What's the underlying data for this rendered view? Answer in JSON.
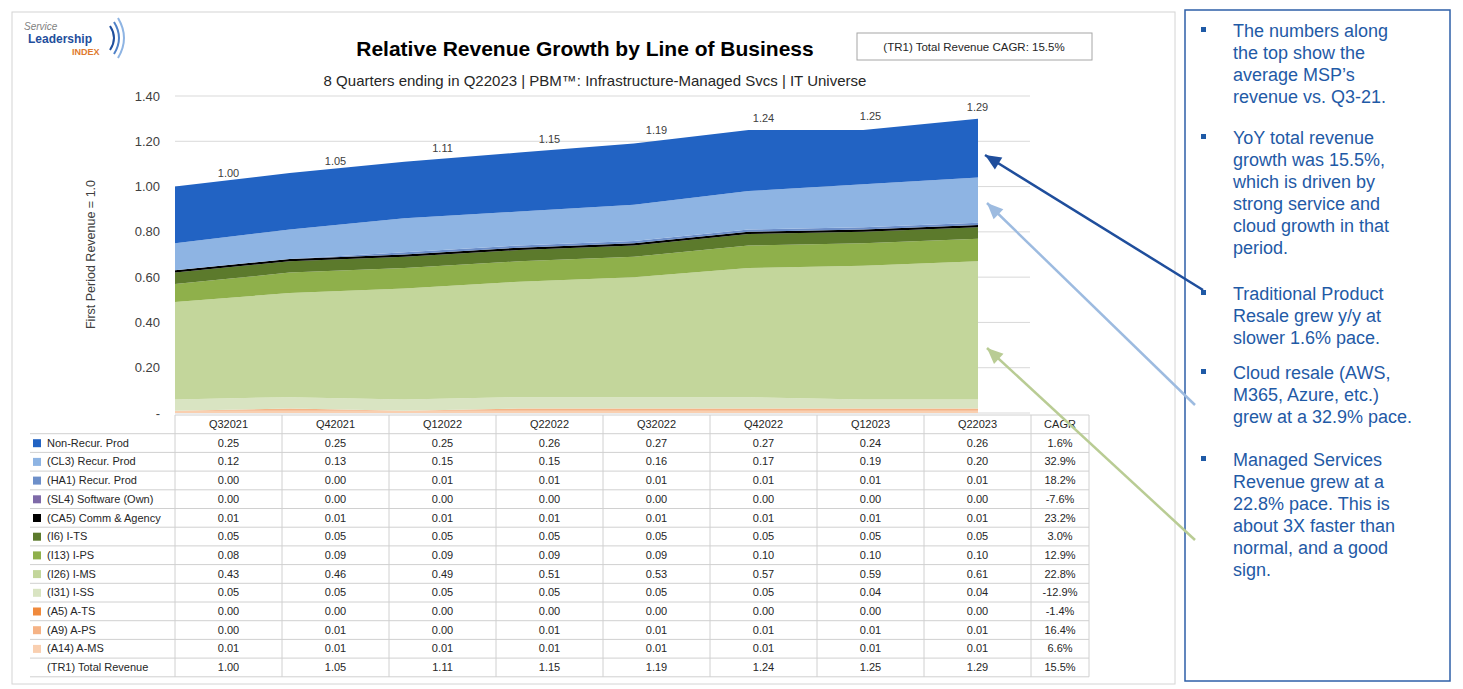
{
  "chart_data": {
    "type": "area",
    "title": "Relative Revenue Growth by Line of Business",
    "subtitle": "8 Quarters ending in Q22023 | PBM™: Infrastructure-Managed Svcs | IT Universe",
    "badge": "(TR1) Total Revenue CAGR: 15.5%",
    "logo": [
      "Service",
      "Leadership",
      "INDEX"
    ],
    "y_label": "First Period Revenue = 1.0",
    "cagr_label": "CAGR",
    "stacked": true,
    "grid": true,
    "data_labels": true,
    "ylim": [
      0,
      1.4
    ],
    "yticks": [
      {
        "value": 0,
        "label": "-"
      },
      {
        "value": 0.2,
        "label": "0.20"
      },
      {
        "value": 0.4,
        "label": "0.40"
      },
      {
        "value": 0.6,
        "label": "0.60"
      },
      {
        "value": 0.8,
        "label": "0.80"
      },
      {
        "value": 1,
        "label": "1.00"
      },
      {
        "value": 1.2,
        "label": "1.20"
      },
      {
        "value": 1.4,
        "label": "1.40"
      }
    ],
    "categories": [
      "Q32021",
      "Q42021",
      "Q12022",
      "Q22022",
      "Q32022",
      "Q42022",
      "Q12023",
      "Q22023"
    ],
    "series": [
      {
        "name": "Non-Recur. Prod",
        "color": "#2263c3",
        "values": [
          0.25,
          0.25,
          0.25,
          0.26,
          0.27,
          0.27,
          0.24,
          0.26
        ],
        "value_labels": [
          "0.25",
          "0.25",
          "0.25",
          "0.26",
          "0.27",
          "0.27",
          "0.24",
          "0.26"
        ],
        "cagr": "1.6%"
      },
      {
        "name": "(CL3) Recur. Prod",
        "color": "#8eb4e3",
        "values": [
          0.12,
          0.13,
          0.15,
          0.15,
          0.16,
          0.17,
          0.19,
          0.2
        ],
        "value_labels": [
          "0.12",
          "0.13",
          "0.15",
          "0.15",
          "0.16",
          "0.17",
          "0.19",
          "0.20"
        ],
        "cagr": "32.9%"
      },
      {
        "name": "(HA1) Recur. Prod",
        "color": "#6d8fc9",
        "values": [
          0,
          0,
          0.01,
          0.01,
          0.01,
          0.01,
          0.01,
          0.01
        ],
        "value_labels": [
          "0.00",
          "0.00",
          "0.01",
          "0.01",
          "0.01",
          "0.01",
          "0.01",
          "0.01"
        ],
        "cagr": "18.2%"
      },
      {
        "name": "(SL4) Software (Own)",
        "color": "#7e6aa8",
        "values": [
          0,
          0,
          0,
          0,
          0,
          0,
          0,
          0
        ],
        "value_labels": [
          "0.00",
          "0.00",
          "0.00",
          "0.00",
          "0.00",
          "0.00",
          "0.00",
          "0.00"
        ],
        "cagr": "-7.6%"
      },
      {
        "name": "(CA5) Comm & Agency",
        "color": "#000000",
        "values": [
          0.01,
          0.01,
          0.01,
          0.01,
          0.01,
          0.01,
          0.01,
          0.01
        ],
        "value_labels": [
          "0.01",
          "0.01",
          "0.01",
          "0.01",
          "0.01",
          "0.01",
          "0.01",
          "0.01"
        ],
        "cagr": "23.2%"
      },
      {
        "name": "(I6) I-TS",
        "color": "#5c7a2c",
        "values": [
          0.05,
          0.05,
          0.05,
          0.05,
          0.05,
          0.05,
          0.05,
          0.05
        ],
        "value_labels": [
          "0.05",
          "0.05",
          "0.05",
          "0.05",
          "0.05",
          "0.05",
          "0.05",
          "0.05"
        ],
        "cagr": "3.0%"
      },
      {
        "name": "(I13) I-PS",
        "color": "#8fb04b",
        "values": [
          0.08,
          0.09,
          0.09,
          0.09,
          0.09,
          0.1,
          0.1,
          0.1
        ],
        "value_labels": [
          "0.08",
          "0.09",
          "0.09",
          "0.09",
          "0.09",
          "0.10",
          "0.10",
          "0.10"
        ],
        "cagr": "12.9%"
      },
      {
        "name": "(I26) I-MS",
        "color": "#c3d69b",
        "values": [
          0.43,
          0.46,
          0.49,
          0.51,
          0.53,
          0.57,
          0.59,
          0.61
        ],
        "value_labels": [
          "0.43",
          "0.46",
          "0.49",
          "0.51",
          "0.53",
          "0.57",
          "0.59",
          "0.61"
        ],
        "cagr": "22.8%"
      },
      {
        "name": "(I31) I-SS",
        "color": "#d9e4c2",
        "values": [
          0.05,
          0.05,
          0.05,
          0.05,
          0.05,
          0.05,
          0.04,
          0.04
        ],
        "value_labels": [
          "0.05",
          "0.05",
          "0.05",
          "0.05",
          "0.05",
          "0.05",
          "0.04",
          "0.04"
        ],
        "cagr": "-12.9%"
      },
      {
        "name": "(A5) A-TS",
        "color": "#f08a3c",
        "values": [
          0,
          0,
          0,
          0,
          0,
          0,
          0,
          0
        ],
        "value_labels": [
          "0.00",
          "0.00",
          "0.00",
          "0.00",
          "0.00",
          "0.00",
          "0.00",
          "0.00"
        ],
        "cagr": "-1.4%"
      },
      {
        "name": "(A9) A-PS",
        "color": "#f5b386",
        "values": [
          0,
          0.01,
          0,
          0.01,
          0.01,
          0.01,
          0.01,
          0.01
        ],
        "value_labels": [
          "0.00",
          "0.01",
          "0.00",
          "0.01",
          "0.01",
          "0.01",
          "0.01",
          "0.01"
        ],
        "cagr": "16.4%"
      },
      {
        "name": "(A14) A-MS",
        "color": "#f9cfb0",
        "values": [
          0.01,
          0.01,
          0.01,
          0.01,
          0.01,
          0.01,
          0.01,
          0.01
        ],
        "value_labels": [
          "0.01",
          "0.01",
          "0.01",
          "0.01",
          "0.01",
          "0.01",
          "0.01",
          "0.01"
        ],
        "cagr": "6.6%"
      }
    ],
    "total": {
      "name": "(TR1) Total Revenue",
      "values": [
        1,
        1.05,
        1.11,
        1.15,
        1.19,
        1.24,
        1.25,
        1.29
      ],
      "value_labels": [
        "1.00",
        "1.05",
        "1.11",
        "1.15",
        "1.19",
        "1.24",
        "1.25",
        "1.29"
      ],
      "cagr": "15.5%"
    },
    "annotations": [
      [
        "The numbers along",
        "the top show the",
        "average MSP’s",
        "revenue vs. Q3-21."
      ],
      [
        "YoY total revenue",
        "growth was 15.5%,",
        "which is driven by",
        "strong service and",
        "cloud growth in that",
        "period."
      ],
      [
        "Traditional Product",
        "Resale grew y/y at",
        "slower 1.6% pace."
      ],
      [
        "Cloud resale (AWS,",
        "M365, Azure, etc.)",
        "grew at a 32.9% pace."
      ],
      [
        "Managed Services",
        "Revenue grew at a",
        "22.8% pace. This is",
        "about 3X faster than",
        "normal, and a good",
        "sign."
      ]
    ]
  }
}
